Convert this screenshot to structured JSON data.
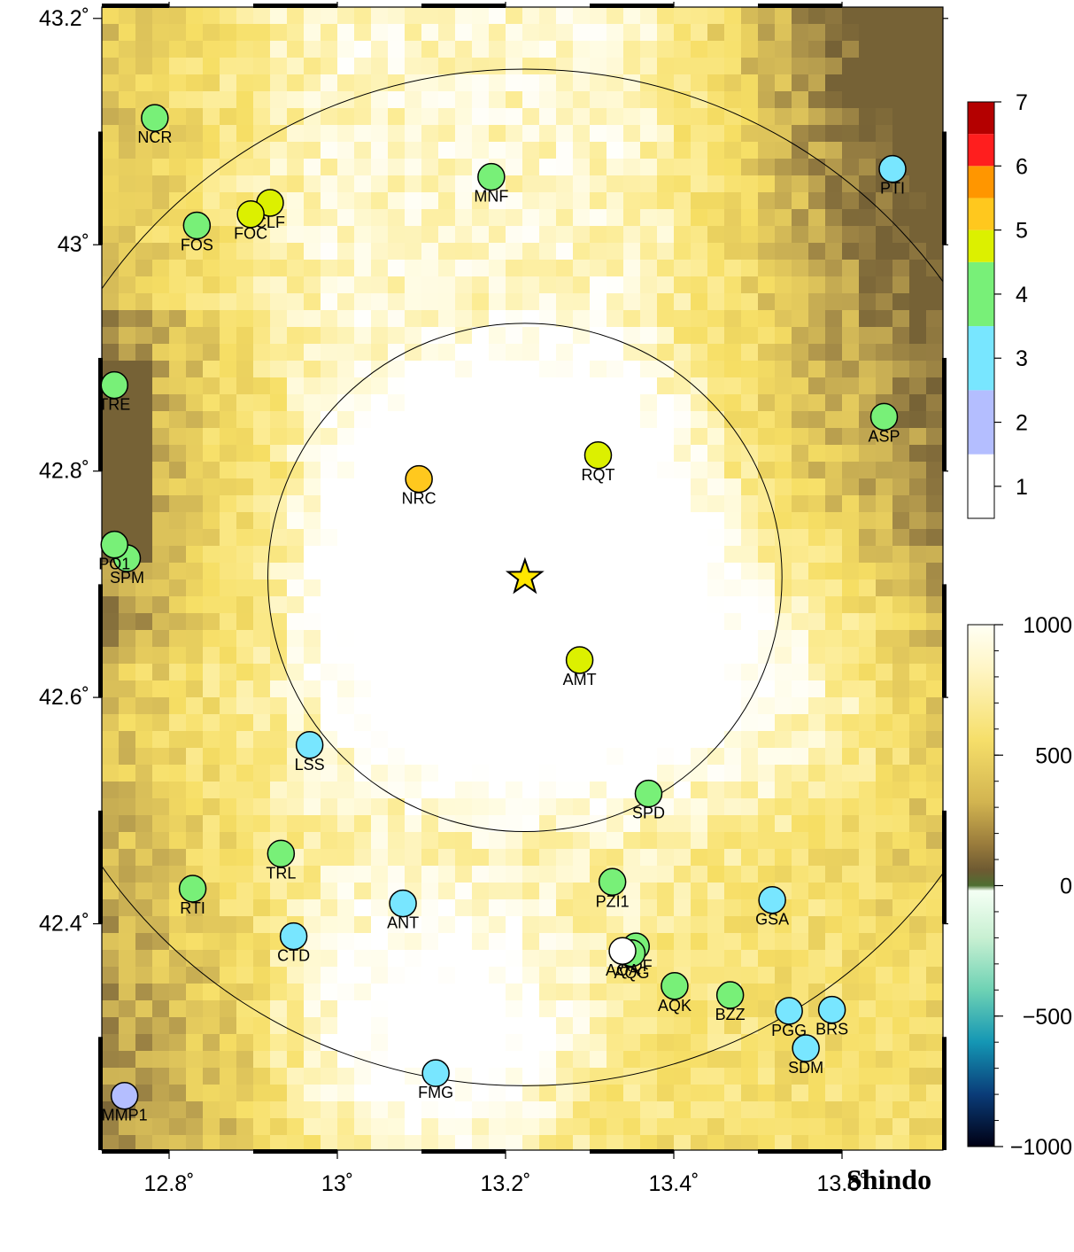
{
  "map": {
    "lon_range": [
      12.72,
      13.72
    ],
    "lat_range": [
      42.2,
      43.21
    ],
    "lon_ticks": [
      12.8,
      13.0,
      13.2,
      13.4,
      13.6
    ],
    "lon_tick_labels": [
      "12.8˚",
      "13˚",
      "13.2˚",
      "13.4˚",
      "13.6˚"
    ],
    "lat_ticks": [
      43.2,
      43.0,
      42.8,
      42.6,
      42.4
    ],
    "lat_tick_labels": [
      "43.2˚",
      "43˚",
      "42.8˚",
      "42.6˚",
      "42.4˚"
    ],
    "epicenter": {
      "lon": 13.223,
      "lat": 42.706
    },
    "rings_km": [
      25,
      50
    ],
    "title": "Shindo"
  },
  "intensity_scale": {
    "levels": [
      {
        "value": 1,
        "label": "1",
        "color": "#ffffff"
      },
      {
        "value": 2,
        "label": "2",
        "color": "#b4beff"
      },
      {
        "value": 3,
        "label": "3",
        "color": "#78e6ff"
      },
      {
        "value": 4,
        "label": "4",
        "color": "#78f078"
      },
      {
        "value": 5,
        "label": "5",
        "color": "#dcf000"
      },
      {
        "value": 5.5,
        "label": "",
        "color": "#ffc81e"
      },
      {
        "value": 6,
        "label": "6",
        "color": "#ff9600"
      },
      {
        "value": 6.5,
        "label": "",
        "color": "#ff1e1e"
      },
      {
        "value": 7,
        "label": "7",
        "color": "#b40000"
      }
    ],
    "tick_labels": [
      "1",
      "2",
      "3",
      "4",
      "5",
      "6",
      "7"
    ]
  },
  "elevation_scale": {
    "min": -1000,
    "max": 1000,
    "tick_labels": [
      "1000",
      "500",
      "0",
      "−500",
      "−1000"
    ],
    "tick_values": [
      1000,
      500,
      0,
      -500,
      -1000
    ]
  },
  "stations": [
    {
      "code": "NCR",
      "lon": 12.783,
      "lat": 43.112,
      "intensity": 4
    },
    {
      "code": "MNF",
      "lon": 13.183,
      "lat": 43.06,
      "intensity": 4
    },
    {
      "code": "PTI",
      "lon": 13.66,
      "lat": 43.067,
      "intensity": 3
    },
    {
      "code": "CLF",
      "lon": 12.92,
      "lat": 43.037,
      "intensity": 5
    },
    {
      "code": "FOC",
      "lon": 12.897,
      "lat": 43.027,
      "intensity": 5
    },
    {
      "code": "FOS",
      "lon": 12.833,
      "lat": 43.017,
      "intensity": 4
    },
    {
      "code": "TRE",
      "lon": 12.735,
      "lat": 42.876,
      "intensity": 4
    },
    {
      "code": "ASP",
      "lon": 13.65,
      "lat": 42.848,
      "intensity": 4
    },
    {
      "code": "RQT",
      "lon": 13.31,
      "lat": 42.814,
      "intensity": 5
    },
    {
      "code": "NRC",
      "lon": 13.097,
      "lat": 42.793,
      "intensity": 5.5
    },
    {
      "code": "SPM",
      "lon": 12.75,
      "lat": 42.723,
      "intensity": 4
    },
    {
      "code": "PO1",
      "lon": 12.735,
      "lat": 42.735,
      "intensity": 4
    },
    {
      "code": "AMT",
      "lon": 13.288,
      "lat": 42.633,
      "intensity": 5
    },
    {
      "code": "LSS",
      "lon": 12.967,
      "lat": 42.558,
      "intensity": 3
    },
    {
      "code": "SPD",
      "lon": 13.37,
      "lat": 42.515,
      "intensity": 4
    },
    {
      "code": "TRL",
      "lon": 12.933,
      "lat": 42.462,
      "intensity": 4
    },
    {
      "code": "PZI1",
      "lon": 13.327,
      "lat": 42.437,
      "intensity": 4
    },
    {
      "code": "RTI",
      "lon": 12.828,
      "lat": 42.431,
      "intensity": 4
    },
    {
      "code": "GSA",
      "lon": 13.517,
      "lat": 42.421,
      "intensity": 3
    },
    {
      "code": "ANT",
      "lon": 13.078,
      "lat": 42.418,
      "intensity": 3
    },
    {
      "code": "CTD",
      "lon": 12.948,
      "lat": 42.389,
      "intensity": 3
    },
    {
      "code": "AQF",
      "lon": 13.355,
      "lat": 42.38,
      "intensity": 4
    },
    {
      "code": "AQG",
      "lon": 13.35,
      "lat": 42.374,
      "intensity": 4
    },
    {
      "code": "AQA",
      "lon": 13.339,
      "lat": 42.376,
      "intensity": 1
    },
    {
      "code": "AQK",
      "lon": 13.401,
      "lat": 42.345,
      "intensity": 4
    },
    {
      "code": "BZZ",
      "lon": 13.467,
      "lat": 42.337,
      "intensity": 4
    },
    {
      "code": "PGG",
      "lon": 13.537,
      "lat": 42.323,
      "intensity": 3
    },
    {
      "code": "BRS",
      "lon": 13.588,
      "lat": 42.324,
      "intensity": 3
    },
    {
      "code": "SDM",
      "lon": 13.557,
      "lat": 42.29,
      "intensity": 3
    },
    {
      "code": "FMG",
      "lon": 13.117,
      "lat": 42.268,
      "intensity": 3
    },
    {
      "code": "MMP1",
      "lon": 12.747,
      "lat": 42.248,
      "intensity": 2
    }
  ]
}
